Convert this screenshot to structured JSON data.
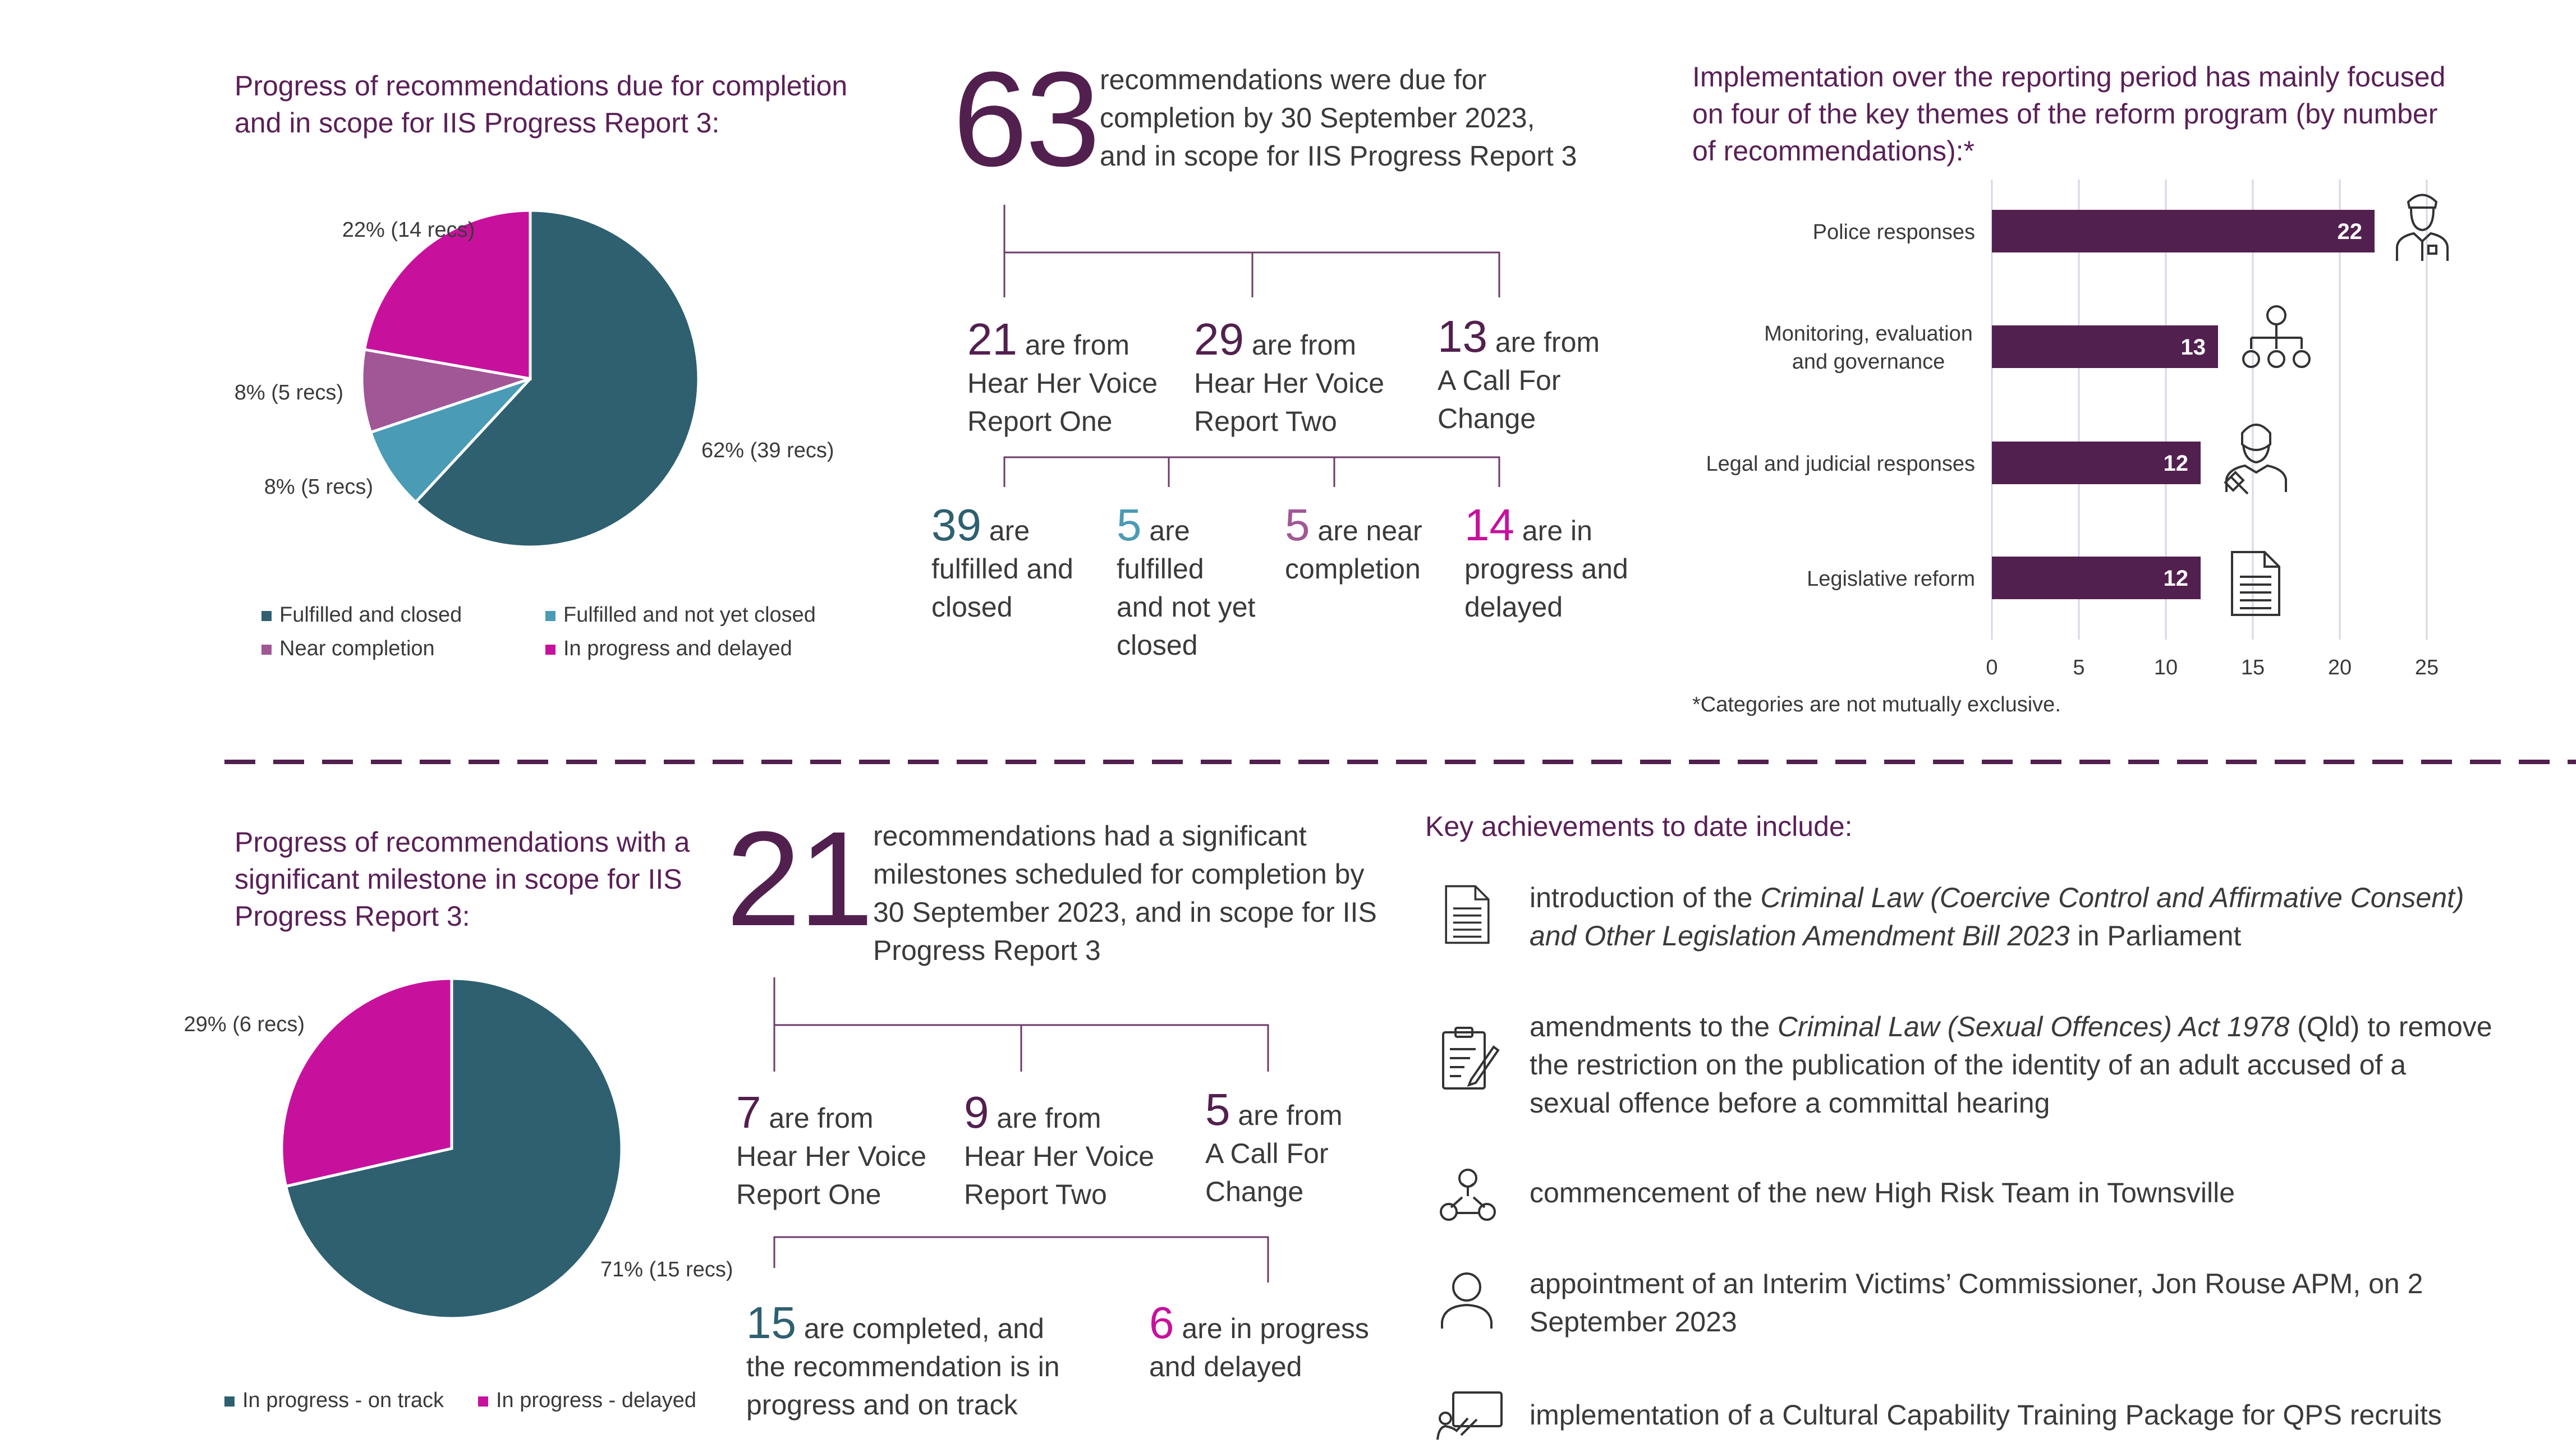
{
  "colors": {
    "purple": "#52204f",
    "teal": "#2e6070",
    "light_blue": "#4a9bb5",
    "mauve": "#a15796",
    "magenta": "#c7119d",
    "bar": "#52204f"
  },
  "top_left": {
    "title_line1": "Progress of recommendations due for completion",
    "title_line2": "and in scope for IIS Progress Report 3:",
    "legend": [
      {
        "label": "Fulfilled and closed",
        "color": "#2e6070"
      },
      {
        "label": "Fulfilled and not yet closed",
        "color": "#4a9bb5"
      },
      {
        "label": "Near completion",
        "color": "#a15796"
      },
      {
        "label": "In progress and delayed",
        "color": "#c7119d"
      }
    ]
  },
  "top_middle": {
    "big_number": "63",
    "desc_line1": "recommendations were due for",
    "desc_line2": "completion by 30 September 2023,",
    "desc_line3": "and in scope for IIS Progress Report 3",
    "sources": [
      {
        "num": "21",
        "text": " are from",
        "line2": "Hear Her Voice",
        "line3": "Report One"
      },
      {
        "num": "29",
        "text": " are from",
        "line2": "Hear Her Voice",
        "line3": "Report Two"
      },
      {
        "num": "13",
        "text": " are from",
        "line2": "A Call For",
        "line3": "Change"
      }
    ],
    "statuses": [
      {
        "num": "39",
        "text": " are",
        "line2": "fulfilled and",
        "line3": "closed",
        "line4": "",
        "color": "#2e6070"
      },
      {
        "num": "5",
        "text": " are",
        "line2": "fulfilled",
        "line3": "and not yet",
        "line4": "closed",
        "color": "#4a9bb5"
      },
      {
        "num": "5",
        "text": " are near",
        "line2": "completion",
        "line3": "",
        "line4": "",
        "color": "#a15796"
      },
      {
        "num": "14",
        "text": " are in",
        "line2": "progress and",
        "line3": "delayed",
        "line4": "",
        "color": "#c7119d"
      }
    ]
  },
  "top_right": {
    "title_line1": "Implementation over the reporting period has mainly focused",
    "title_line2": "on four of the key themes of the reform program (by number",
    "title_line3": "of recommendations):*",
    "footnote": "*Categories are not mutually exclusive.",
    "icons": [
      "police-officer-icon",
      "org-chart-icon",
      "judge-icon",
      "document-icon"
    ]
  },
  "bottom_left": {
    "title_line1": "Progress of recommendations with a",
    "title_line2": "significant milestone in scope for IIS",
    "title_line3": "Progress Report 3:",
    "legend": [
      {
        "label": "In progress - on track",
        "color": "#2e6070"
      },
      {
        "label": "In progress - delayed",
        "color": "#c7119d"
      }
    ]
  },
  "bottom_middle": {
    "big_number": "21",
    "desc_line1": "recommendations had a significant",
    "desc_line2": "milestones scheduled for completion by",
    "desc_line3": "30 September 2023, and in scope for IIS",
    "desc_line4": "Progress Report 3",
    "sources": [
      {
        "num": "7",
        "text": " are from",
        "line2": "Hear Her Voice",
        "line3": "Report One"
      },
      {
        "num": "9",
        "text": " are from",
        "line2": "Hear Her Voice",
        "line3": "Report Two"
      },
      {
        "num": "5",
        "text": " are from",
        "line2": "A Call For",
        "line3": "Change"
      }
    ],
    "statuses": [
      {
        "num": "15",
        "text": " are completed, and",
        "line2": "the recommendation is in",
        "line3": "progress and on track",
        "color": "#2e6070"
      },
      {
        "num": "6",
        "text": " are in progress",
        "line2": "and delayed",
        "line3": "",
        "color": "#c7119d"
      }
    ]
  },
  "achievements": {
    "heading": "Key achievements to date include:",
    "items": [
      {
        "icon": "document-icon",
        "pre": "introduction of the ",
        "italic": "Criminal Law (Coercive Control and Affirmative Consent)",
        "line2_italic": "and Other Legislation Amendment Bill 2023",
        "line2_post": " in Parliament"
      },
      {
        "icon": "clipboard-pen-icon",
        "pre": "amendments to the ",
        "italic": "Criminal Law (Sexual Offences) Act 1978",
        "post": " (Qld) to remove",
        "line2": "the restriction on the publication of the identity of an adult accused of a",
        "line3": "sexual offence before a committal hearing"
      },
      {
        "icon": "team-network-icon",
        "text": "commencement of the new High Risk Team in Townsville"
      },
      {
        "icon": "person-icon",
        "line1": "appointment of an Interim Victims’ Commissioner, Jon Rouse APM, on 2",
        "line2": "September 2023"
      },
      {
        "icon": "training-board-icon",
        "text": "implementation of a Cultural Capability Training Package for QPS recruits"
      }
    ]
  },
  "chart_data": [
    {
      "type": "pie",
      "title": "Progress of recommendations due for completion and in scope for IIS Progress Report 3:",
      "labels": [
        "Fulfilled and closed",
        "Fulfilled and not yet closed",
        "Near completion",
        "In progress and delayed"
      ],
      "values": [
        39,
        5,
        5,
        14
      ],
      "data_labels": [
        "62% (39 recs)",
        "8% (5 recs)",
        "8% (5 recs)",
        "22% (14 recs)"
      ],
      "colors": [
        "#2e6070",
        "#4a9bb5",
        "#a15796",
        "#c7119d"
      ],
      "legend": "bottom"
    },
    {
      "type": "bar",
      "orientation": "horizontal",
      "title": "Implementation over the reporting period has mainly focused on four of the key themes of the reform program (by number of recommendations):*",
      "categories": [
        "Police responses",
        "Monitoring, evaluation and governance",
        "Legal and judicial responses",
        "Legislative reform"
      ],
      "category_lines": [
        [
          "Police responses"
        ],
        [
          "Monitoring, evaluation",
          "and governance"
        ],
        [
          "Legal and judicial responses"
        ],
        [
          "Legislative reform"
        ]
      ],
      "values": [
        22,
        13,
        12,
        12
      ],
      "xlim": [
        0,
        25
      ],
      "xticks": [
        0,
        5,
        10,
        15,
        20,
        25
      ],
      "grid": true,
      "color": "#52204f"
    },
    {
      "type": "pie",
      "title": "Progress of recommendations with a significant milestone in scope for IIS Progress Report 3:",
      "labels": [
        "In progress - on track",
        "In progress - delayed"
      ],
      "values": [
        15,
        6
      ],
      "data_labels": [
        "71% (15 recs)",
        "29% (6 recs)"
      ],
      "colors": [
        "#2e6070",
        "#c7119d"
      ],
      "legend": "bottom"
    }
  ]
}
